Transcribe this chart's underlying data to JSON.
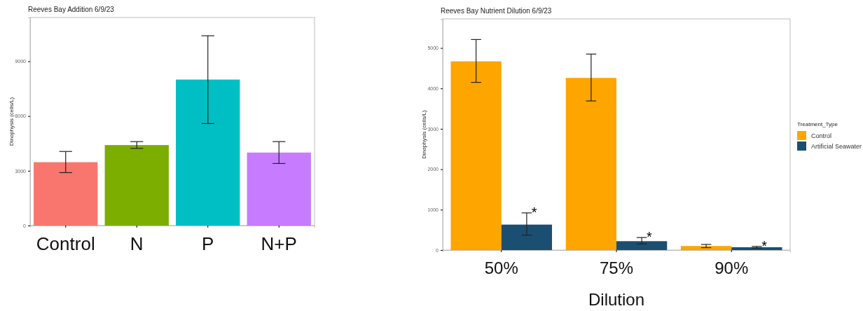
{
  "chart_data": [
    {
      "type": "bar",
      "title": "Reeves Bay Addition 6/9/23",
      "ylabel": "Dinophysis (cells/L)",
      "categories": [
        "Control",
        "N",
        "P",
        "N+P"
      ],
      "values": [
        3470,
        4410,
        8000,
        4000
      ],
      "colors": [
        "#f8766d",
        "#7cae00",
        "#00bfc4",
        "#c77cff"
      ],
      "errors": [
        [
          2900,
          4060
        ],
        [
          4230,
          4600
        ],
        [
          5590,
          10400
        ],
        [
          3400,
          4600
        ]
      ],
      "ylim": [
        0,
        11400
      ],
      "yticks": [
        0,
        3000,
        6000,
        9000
      ],
      "legend": false
    },
    {
      "type": "bar",
      "title": "Reeves Bay Nutrient Dilution 6/9/23",
      "xlabel": "Dilution",
      "ylabel": "Dinophysis (cells/L)",
      "legend_title": "Treatment_Type",
      "categories": [
        "50%",
        "75%",
        "90%"
      ],
      "series": [
        {
          "name": "Control",
          "color": "#ffa500",
          "values": [
            4670,
            4260,
            100
          ],
          "errors": [
            [
              4150,
              5210
            ],
            [
              3690,
              4850
            ],
            [
              60,
              140
            ]
          ]
        },
        {
          "name": "Artificial Seawater",
          "color": "#1b4f72",
          "values": [
            630,
            220,
            70
          ],
          "errors": [
            [
              370,
              920
            ],
            [
              150,
              310
            ],
            [
              50,
              90
            ]
          ]
        }
      ],
      "annotations": [
        {
          "text": "*",
          "x": "50%",
          "y": 920
        },
        {
          "text": "*",
          "x": "75%",
          "y": 310
        },
        {
          "text": "*",
          "x": "90%",
          "y": 90
        }
      ],
      "ylim": [
        0,
        5720
      ],
      "yticks": [
        0,
        1000,
        2000,
        3000,
        4000,
        5000
      ],
      "legend": "right"
    }
  ]
}
